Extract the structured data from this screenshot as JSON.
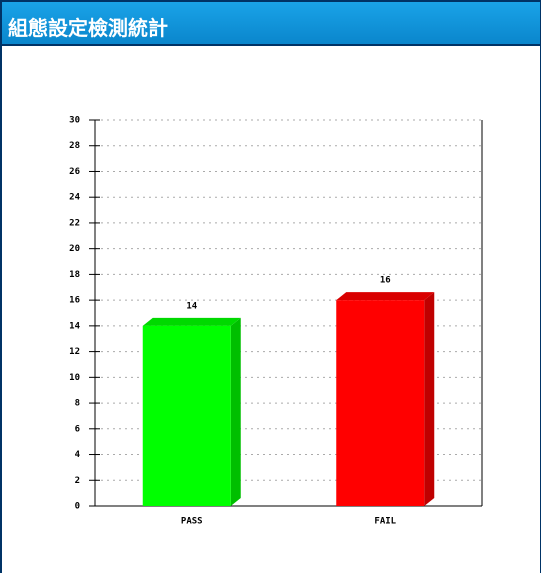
{
  "chart_data": {
    "type": "bar",
    "title": "組態設定檢測統計",
    "categories": [
      "PASS",
      "FAIL"
    ],
    "values": [
      14,
      16
    ],
    "colors": [
      "#00ff00",
      "#ff0000"
    ],
    "ylim": [
      0,
      30
    ],
    "yticks": [
      0,
      2,
      4,
      6,
      8,
      10,
      12,
      14,
      16,
      18,
      20,
      22,
      24,
      26,
      28,
      30
    ],
    "grid": true
  }
}
